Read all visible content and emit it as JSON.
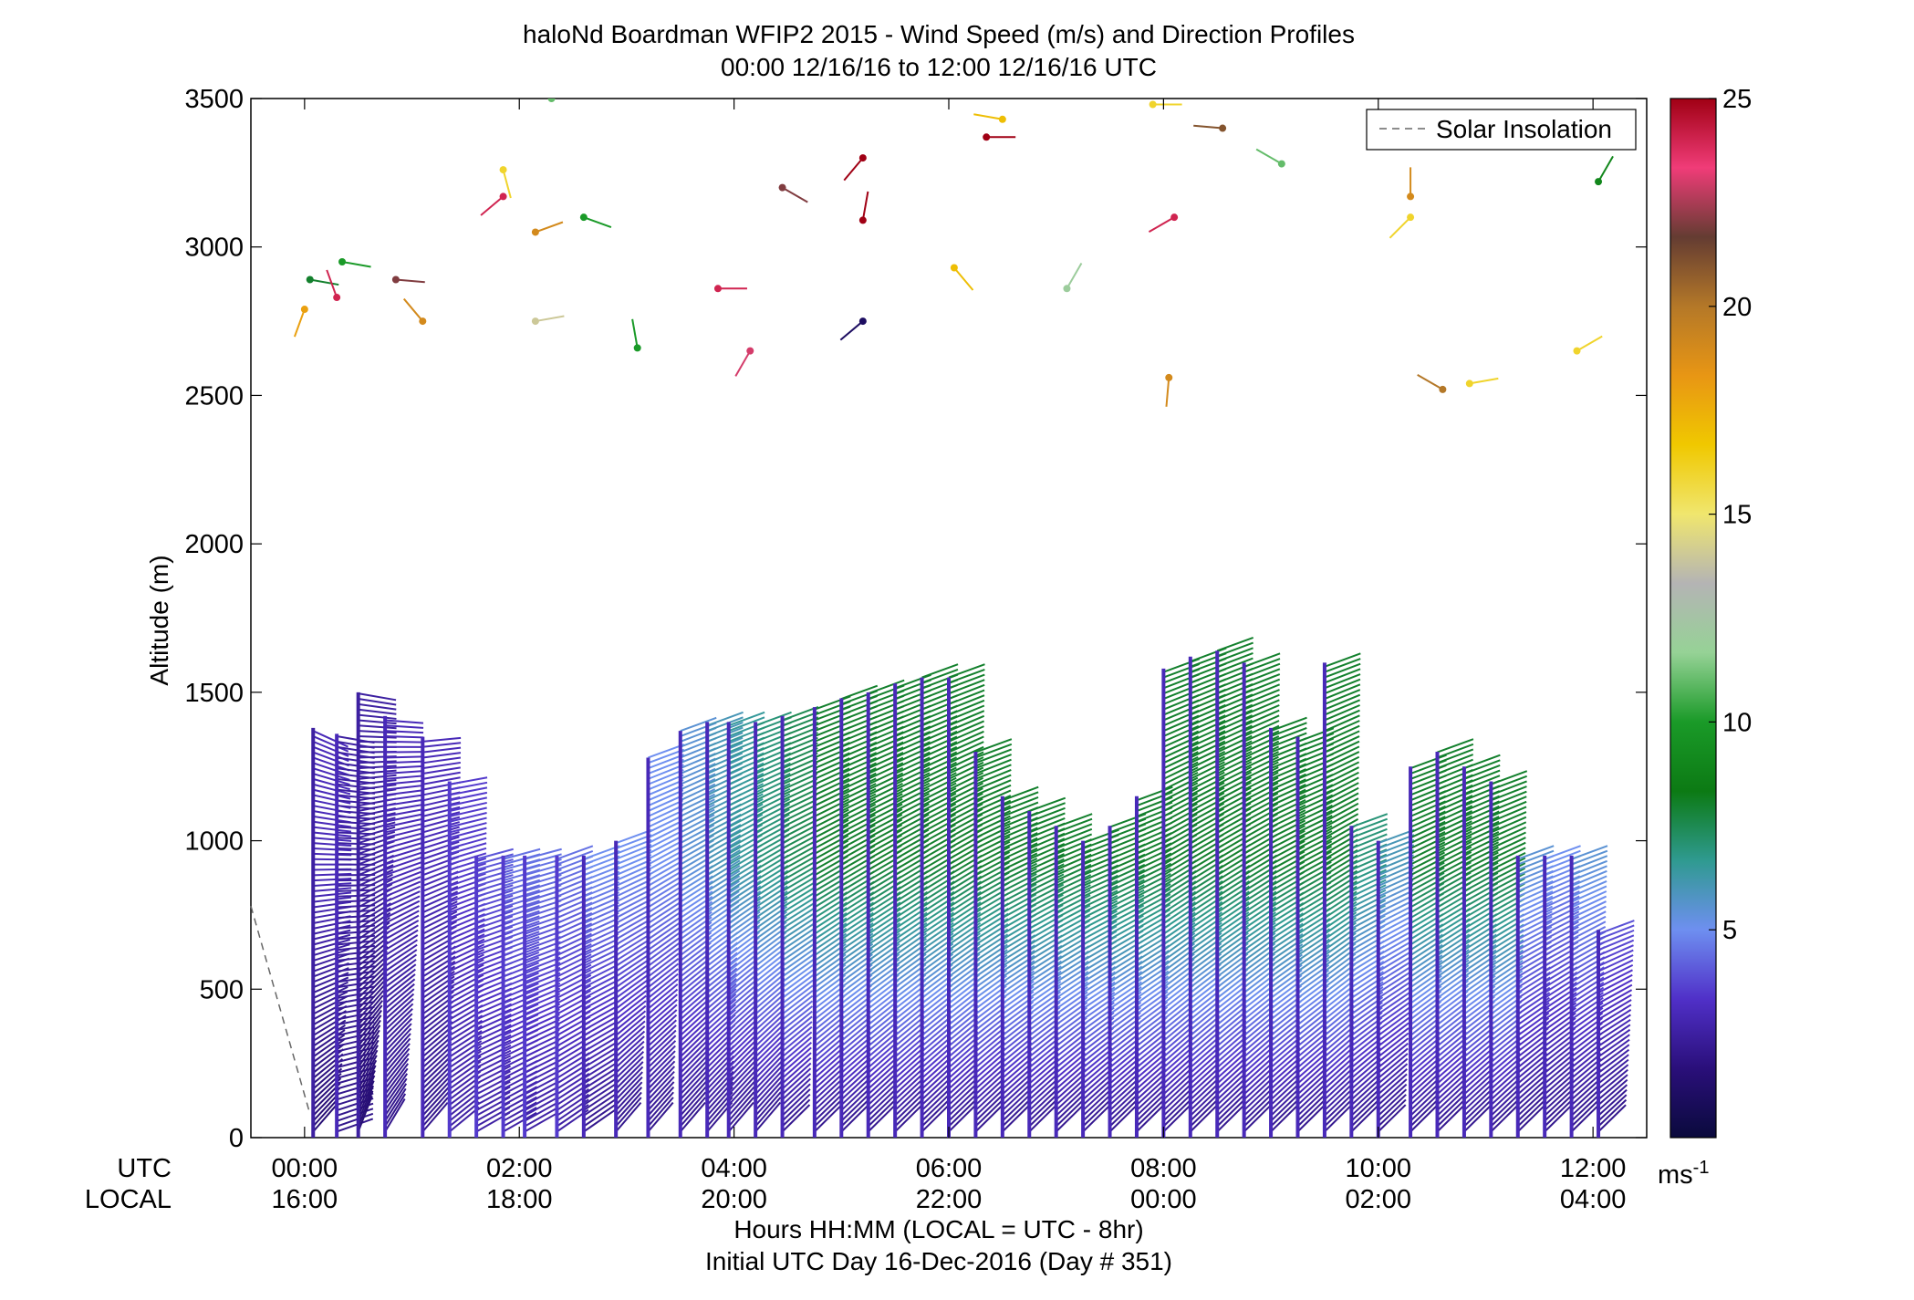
{
  "chart_data": {
    "type": "wind barb profile",
    "title": "haloNd Boardman WFIP2 2015 - Wind Speed (m/s) and Direction Profiles",
    "subtitle": "00:00 12/16/16 to 12:00 12/16/16  UTC",
    "ylabel": "Altitude (m)",
    "ylim": [
      0,
      3500
    ],
    "yticks": [
      "0",
      "500",
      "1000",
      "1500",
      "2000",
      "2500",
      "3000",
      "3500"
    ],
    "xlim_hours_utc": [
      -0.5,
      12.5
    ],
    "x_row_labels": [
      "UTC",
      "LOCAL"
    ],
    "x_utc_ticks": [
      "00:00",
      "02:00",
      "04:00",
      "06:00",
      "08:00",
      "10:00",
      "12:00"
    ],
    "x_local_ticks": [
      "16:00",
      "18:00",
      "20:00",
      "22:00",
      "00:00",
      "02:00",
      "04:00"
    ],
    "xlabel": "Hours HH:MM  (LOCAL = UTC - 8hr)",
    "xlabel2": "Initial UTC Day 16-Dec-2016 (Day # 351)",
    "legend": {
      "placement": "top-right",
      "entries": [
        "Solar Insolation"
      ]
    },
    "colorbar": {
      "range": [
        0,
        25
      ],
      "ticks": [
        "5",
        "10",
        "15",
        "20",
        "25"
      ],
      "unit_label": "ms",
      "unit_exponent": "-1",
      "colors": [
        "#0a0a3c",
        "#2a0f7a",
        "#5030c8",
        "#6e8ff0",
        "#2f9a90",
        "#0c7a14",
        "#1a9a28",
        "#96d296",
        "#b4b4b4",
        "#f0e66e",
        "#f0c800",
        "#e89614",
        "#b47828",
        "#643c32",
        "#f03c78",
        "#a00014"
      ]
    },
    "solar_insolation": {
      "x_hours_utc": [
        -0.5,
        0.05
      ],
      "y_altitude_m": [
        780,
        80
      ]
    },
    "profiles": [
      {
        "t": 0.08,
        "top": 1380,
        "dir_low": 40,
        "dir_high": 115,
        "speed_low": 1.5,
        "speed_high": 3
      },
      {
        "t": 0.3,
        "top": 1360,
        "dir_low": 70,
        "dir_high": 100,
        "speed_low": 2,
        "speed_high": 2.5
      },
      {
        "t": 0.5,
        "top": 1500,
        "dir_low": 20,
        "dir_high": 100,
        "speed_low": 1.5,
        "speed_high": 2.5
      },
      {
        "t": 0.75,
        "top": 1420,
        "dir_low": 30,
        "dir_high": 95,
        "speed_low": 2,
        "speed_high": 3
      },
      {
        "t": 1.1,
        "top": 1350,
        "dir_low": 40,
        "dir_high": 85,
        "speed_low": 2,
        "speed_high": 3
      },
      {
        "t": 1.35,
        "top": 1200,
        "dir_low": 50,
        "dir_high": 80,
        "speed_low": 2.5,
        "speed_high": 3.5
      },
      {
        "t": 1.6,
        "top": 950,
        "dir_low": 60,
        "dir_high": 75,
        "speed_low": 2.5,
        "speed_high": 4
      },
      {
        "t": 1.85,
        "top": 950,
        "dir_low": 60,
        "dir_high": 75,
        "speed_low": 2.5,
        "speed_high": 4.5
      },
      {
        "t": 2.05,
        "top": 950,
        "dir_low": 60,
        "dir_high": 75,
        "speed_low": 2.5,
        "speed_high": 4.5
      },
      {
        "t": 2.35,
        "top": 950,
        "dir_low": 55,
        "dir_high": 70,
        "speed_low": 2.5,
        "speed_high": 4.5
      },
      {
        "t": 2.6,
        "top": 950,
        "dir_low": 55,
        "dir_high": 70,
        "speed_low": 2,
        "speed_high": 5
      },
      {
        "t": 2.9,
        "top": 1000,
        "dir_low": 40,
        "dir_high": 70,
        "speed_low": 2,
        "speed_high": 5
      },
      {
        "t": 3.2,
        "top": 1280,
        "dir_low": 40,
        "dir_high": 70,
        "speed_low": 2,
        "speed_high": 5
      },
      {
        "t": 3.5,
        "top": 1370,
        "dir_low": 40,
        "dir_high": 70,
        "speed_low": 2,
        "speed_high": 5.5
      },
      {
        "t": 3.75,
        "top": 1400,
        "dir_low": 40,
        "dir_high": 70,
        "speed_low": 2,
        "speed_high": 6
      },
      {
        "t": 3.95,
        "top": 1400,
        "dir_low": 40,
        "dir_high": 70,
        "speed_low": 2,
        "speed_high": 6.5
      },
      {
        "t": 4.2,
        "top": 1400,
        "dir_low": 40,
        "dir_high": 70,
        "speed_low": 2,
        "speed_high": 7
      },
      {
        "t": 4.45,
        "top": 1420,
        "dir_low": 45,
        "dir_high": 70,
        "speed_low": 2,
        "speed_high": 7.5
      },
      {
        "t": 4.75,
        "top": 1450,
        "dir_low": 45,
        "dir_high": 70,
        "speed_low": 2,
        "speed_high": 8
      },
      {
        "t": 5.0,
        "top": 1480,
        "dir_low": 45,
        "dir_high": 70,
        "speed_low": 2,
        "speed_high": 8
      },
      {
        "t": 5.25,
        "top": 1500,
        "dir_low": 45,
        "dir_high": 70,
        "speed_low": 2,
        "speed_high": 8
      },
      {
        "t": 5.5,
        "top": 1530,
        "dir_low": 45,
        "dir_high": 70,
        "speed_low": 2,
        "speed_high": 8
      },
      {
        "t": 5.75,
        "top": 1550,
        "dir_low": 45,
        "dir_high": 70,
        "speed_low": 2,
        "speed_high": 8
      },
      {
        "t": 6.0,
        "top": 1550,
        "dir_low": 45,
        "dir_high": 70,
        "speed_low": 2,
        "speed_high": 8
      },
      {
        "t": 6.25,
        "top": 1300,
        "dir_low": 45,
        "dir_high": 70,
        "speed_low": 2,
        "speed_high": 8
      },
      {
        "t": 6.5,
        "top": 1150,
        "dir_low": 45,
        "dir_high": 70,
        "speed_low": 2,
        "speed_high": 8
      },
      {
        "t": 6.75,
        "top": 1100,
        "dir_low": 45,
        "dir_high": 70,
        "speed_low": 2,
        "speed_high": 8
      },
      {
        "t": 7.0,
        "top": 1050,
        "dir_low": 45,
        "dir_high": 70,
        "speed_low": 2,
        "speed_high": 8
      },
      {
        "t": 7.25,
        "top": 1000,
        "dir_low": 45,
        "dir_high": 70,
        "speed_low": 2,
        "speed_high": 8
      },
      {
        "t": 7.5,
        "top": 1050,
        "dir_low": 45,
        "dir_high": 70,
        "speed_low": 2,
        "speed_high": 8
      },
      {
        "t": 7.75,
        "top": 1150,
        "dir_low": 45,
        "dir_high": 70,
        "speed_low": 2,
        "speed_high": 8
      },
      {
        "t": 8.0,
        "top": 1580,
        "dir_low": 45,
        "dir_high": 70,
        "speed_low": 2,
        "speed_high": 8
      },
      {
        "t": 8.25,
        "top": 1620,
        "dir_low": 45,
        "dir_high": 70,
        "speed_low": 2,
        "speed_high": 8
      },
      {
        "t": 8.5,
        "top": 1640,
        "dir_low": 45,
        "dir_high": 70,
        "speed_low": 2,
        "speed_high": 8
      },
      {
        "t": 8.75,
        "top": 1600,
        "dir_low": 45,
        "dir_high": 70,
        "speed_low": 2,
        "speed_high": 8
      },
      {
        "t": 9.0,
        "top": 1380,
        "dir_low": 45,
        "dir_high": 70,
        "speed_low": 2,
        "speed_high": 8
      },
      {
        "t": 9.25,
        "top": 1350,
        "dir_low": 45,
        "dir_high": 70,
        "speed_low": 2,
        "speed_high": 8
      },
      {
        "t": 9.5,
        "top": 1600,
        "dir_low": 45,
        "dir_high": 70,
        "speed_low": 2,
        "speed_high": 8
      },
      {
        "t": 9.75,
        "top": 1050,
        "dir_low": 45,
        "dir_high": 70,
        "speed_low": 2,
        "speed_high": 7
      },
      {
        "t": 10.0,
        "top": 1000,
        "dir_low": 45,
        "dir_high": 70,
        "speed_low": 2,
        "speed_high": 6
      },
      {
        "t": 10.3,
        "top": 1250,
        "dir_low": 45,
        "dir_high": 70,
        "speed_low": 2,
        "speed_high": 8
      },
      {
        "t": 10.55,
        "top": 1300,
        "dir_low": 45,
        "dir_high": 70,
        "speed_low": 2,
        "speed_high": 8
      },
      {
        "t": 10.8,
        "top": 1250,
        "dir_low": 45,
        "dir_high": 70,
        "speed_low": 2,
        "speed_high": 8
      },
      {
        "t": 11.05,
        "top": 1200,
        "dir_low": 45,
        "dir_high": 70,
        "speed_low": 2,
        "speed_high": 8
      },
      {
        "t": 11.3,
        "top": 950,
        "dir_low": 45,
        "dir_high": 70,
        "speed_low": 2,
        "speed_high": 5.5
      },
      {
        "t": 11.55,
        "top": 950,
        "dir_low": 45,
        "dir_high": 70,
        "speed_low": 2,
        "speed_high": 5
      },
      {
        "t": 11.8,
        "top": 950,
        "dir_low": 45,
        "dir_high": 70,
        "speed_low": 2,
        "speed_high": 5.5
      },
      {
        "t": 12.05,
        "top": 700,
        "dir_low": 45,
        "dir_high": 70,
        "speed_low": 2,
        "speed_high": 4.5
      }
    ],
    "upper_barbs": [
      {
        "t": 0.05,
        "alt": 2890,
        "dir": 100,
        "speed": 8
      },
      {
        "t": 0.35,
        "alt": 2950,
        "dir": 100,
        "speed": 10
      },
      {
        "t": 0.0,
        "alt": 2790,
        "dir": 200,
        "speed": 18
      },
      {
        "t": 0.3,
        "alt": 2830,
        "dir": 340,
        "speed": 24
      },
      {
        "t": 0.85,
        "alt": 2890,
        "dir": 95,
        "speed": 22
      },
      {
        "t": 1.1,
        "alt": 2750,
        "dir": 320,
        "speed": 19
      },
      {
        "t": 2.3,
        "alt": 3500,
        "dir": 0,
        "speed": 11
      },
      {
        "t": 1.85,
        "alt": 3170,
        "dir": 230,
        "speed": 24
      },
      {
        "t": 1.85,
        "alt": 3260,
        "dir": 165,
        "speed": 16
      },
      {
        "t": 2.15,
        "alt": 3050,
        "dir": 70,
        "speed": 19
      },
      {
        "t": 2.6,
        "alt": 3100,
        "dir": 110,
        "speed": 10
      },
      {
        "t": 2.15,
        "alt": 2750,
        "dir": 80,
        "speed": 14
      },
      {
        "t": 3.1,
        "alt": 2660,
        "dir": 350,
        "speed": 10
      },
      {
        "t": 3.85,
        "alt": 2860,
        "dir": 90,
        "speed": 24
      },
      {
        "t": 4.15,
        "alt": 2650,
        "dir": 210,
        "speed": 23
      },
      {
        "t": 4.45,
        "alt": 3200,
        "dir": 120,
        "speed": 22
      },
      {
        "t": 5.2,
        "alt": 3300,
        "dir": 220,
        "speed": 25
      },
      {
        "t": 5.2,
        "alt": 3090,
        "dir": 10,
        "speed": 25
      },
      {
        "t": 5.2,
        "alt": 2750,
        "dir": 230,
        "speed": 1
      },
      {
        "t": 6.35,
        "alt": 3370,
        "dir": 90,
        "speed": 25
      },
      {
        "t": 6.5,
        "alt": 3430,
        "dir": 280,
        "speed": 17
      },
      {
        "t": 6.05,
        "alt": 2930,
        "dir": 140,
        "speed": 17
      },
      {
        "t": 7.1,
        "alt": 2860,
        "dir": 30,
        "speed": 12
      },
      {
        "t": 7.9,
        "alt": 3480,
        "dir": 90,
        "speed": 16
      },
      {
        "t": 8.1,
        "alt": 3100,
        "dir": 240,
        "speed": 24
      },
      {
        "t": 8.55,
        "alt": 3400,
        "dir": 275,
        "speed": 21
      },
      {
        "t": 9.1,
        "alt": 3280,
        "dir": 300,
        "speed": 11
      },
      {
        "t": 8.05,
        "alt": 2560,
        "dir": 185,
        "speed": 19
      },
      {
        "t": 10.3,
        "alt": 3170,
        "dir": 0,
        "speed": 19
      },
      {
        "t": 10.3,
        "alt": 3100,
        "dir": 225,
        "speed": 16
      },
      {
        "t": 10.6,
        "alt": 2520,
        "dir": 300,
        "speed": 20
      },
      {
        "t": 10.85,
        "alt": 2540,
        "dir": 80,
        "speed": 16
      },
      {
        "t": 11.85,
        "alt": 2650,
        "dir": 60,
        "speed": 16
      },
      {
        "t": 12.05,
        "alt": 3220,
        "dir": 30,
        "speed": 9
      }
    ]
  }
}
